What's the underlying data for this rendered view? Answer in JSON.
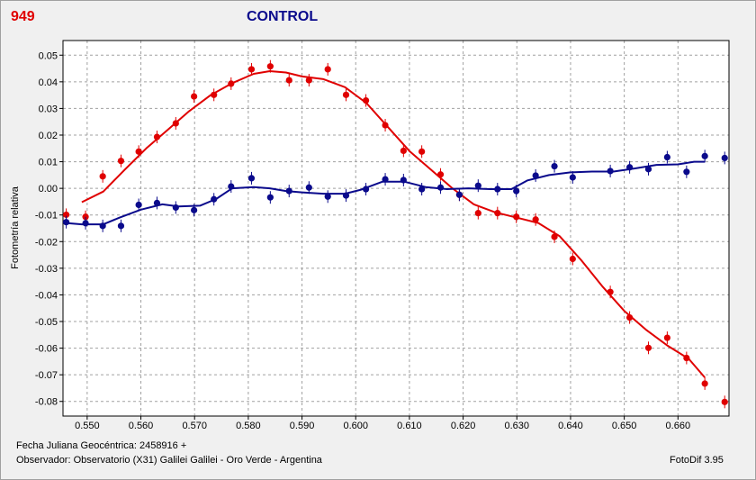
{
  "header": {
    "id": "949",
    "title": "CONTROL"
  },
  "footer": {
    "date_line": "Fecha Juliana Geocéntrica: 2458916 +",
    "observer_line": "Observador: Observatorio (X31) Galilei Galilei - Oro Verde - Argentina",
    "software": "FotoDif 3.95"
  },
  "colors": {
    "id": "#e00000",
    "title": "#0a0a8c",
    "red_series": "#e00000",
    "blue_series": "#0a0a8c",
    "grid": "#a0a0a0"
  },
  "chart_data": {
    "type": "scatter",
    "title": "CONTROL",
    "xlabel": "",
    "ylabel": "Fotometría relativa",
    "xlim": [
      0.5455,
      0.6695
    ],
    "ylim": [
      0.0555,
      -0.0855
    ],
    "y_inverted": true,
    "grid": true,
    "x_ticks": [
      0.55,
      0.56,
      0.57,
      0.58,
      0.59,
      0.6,
      0.61,
      0.62,
      0.63,
      0.64,
      0.65,
      0.66
    ],
    "x_tick_labels": [
      "0.550",
      "0.560",
      "0.570",
      "0.580",
      "0.590",
      "0.600",
      "0.610",
      "0.620",
      "0.630",
      "0.640",
      "0.650",
      "0.660"
    ],
    "y_ticks": [
      0.05,
      0.04,
      0.03,
      0.02,
      0.01,
      0.0,
      -0.01,
      -0.02,
      -0.03,
      -0.04,
      -0.05,
      -0.06,
      -0.07,
      -0.08
    ],
    "y_tick_labels": [
      "0.05",
      "0.04",
      "0.03",
      "0.02",
      "0.01",
      "0.00",
      "-0.01",
      "-0.02",
      "-0.03",
      "-0.04",
      "-0.05",
      "-0.06",
      "-0.07",
      "-0.08"
    ],
    "series": [
      {
        "color": "#e00000",
        "points": [
          [
            0.5461,
            -0.0099
          ],
          [
            0.5497,
            -0.0107
          ],
          [
            0.5529,
            0.0045
          ],
          [
            0.5563,
            0.0103
          ],
          [
            0.5596,
            0.0138
          ],
          [
            0.563,
            0.0193
          ],
          [
            0.5665,
            0.0244
          ],
          [
            0.5699,
            0.0345
          ],
          [
            0.5736,
            0.0351
          ],
          [
            0.5768,
            0.0393
          ],
          [
            0.5806,
            0.0447
          ],
          [
            0.5841,
            0.0458
          ],
          [
            0.5876,
            0.0406
          ],
          [
            0.5913,
            0.0406
          ],
          [
            0.5948,
            0.0447
          ],
          [
            0.5982,
            0.0351
          ],
          [
            0.6019,
            0.033
          ],
          [
            0.6055,
            0.0237
          ],
          [
            0.6089,
            0.0141
          ],
          [
            0.6123,
            0.0138
          ],
          [
            0.6158,
            0.0052
          ],
          [
            0.6193,
            -0.0024
          ],
          [
            0.6228,
            -0.0093
          ],
          [
            0.6264,
            -0.0093
          ],
          [
            0.6299,
            -0.0107
          ],
          [
            0.6335,
            -0.0117
          ],
          [
            0.637,
            -0.0182
          ],
          [
            0.6404,
            -0.0265
          ],
          [
            0.6474,
            -0.0389
          ],
          [
            0.651,
            -0.0485
          ],
          [
            0.6545,
            -0.0599
          ],
          [
            0.658,
            -0.0561
          ],
          [
            0.6616,
            -0.0637
          ],
          [
            0.665,
            -0.0733
          ],
          [
            0.6687,
            -0.0802
          ]
        ],
        "curve": [
          [
            0.549,
            -0.0052
          ],
          [
            0.553,
            -0.0012
          ],
          [
            0.557,
            0.007
          ],
          [
            0.561,
            0.015
          ],
          [
            0.565,
            0.022
          ],
          [
            0.569,
            0.029
          ],
          [
            0.573,
            0.035
          ],
          [
            0.577,
            0.0395
          ],
          [
            0.581,
            0.043
          ],
          [
            0.584,
            0.044
          ],
          [
            0.587,
            0.0435
          ],
          [
            0.59,
            0.042
          ],
          [
            0.594,
            0.041
          ],
          [
            0.598,
            0.038
          ],
          [
            0.602,
            0.032
          ],
          [
            0.606,
            0.023
          ],
          [
            0.61,
            0.014
          ],
          [
            0.614,
            0.007
          ],
          [
            0.618,
            0.0
          ],
          [
            0.622,
            -0.006
          ],
          [
            0.626,
            -0.009
          ],
          [
            0.63,
            -0.011
          ],
          [
            0.634,
            -0.013
          ],
          [
            0.638,
            -0.018
          ],
          [
            0.642,
            -0.027
          ],
          [
            0.646,
            -0.037
          ],
          [
            0.65,
            -0.046
          ],
          [
            0.654,
            -0.053
          ],
          [
            0.658,
            -0.059
          ],
          [
            0.662,
            -0.064
          ],
          [
            0.665,
            -0.071
          ]
        ]
      },
      {
        "color": "#0a0a8c",
        "points": [
          [
            0.5461,
            -0.0127
          ],
          [
            0.5497,
            -0.0131
          ],
          [
            0.5529,
            -0.0141
          ],
          [
            0.5563,
            -0.0141
          ],
          [
            0.5596,
            -0.0062
          ],
          [
            0.563,
            -0.0055
          ],
          [
            0.5665,
            -0.0072
          ],
          [
            0.5699,
            -0.0082
          ],
          [
            0.5736,
            -0.0041
          ],
          [
            0.5768,
            0.0007
          ],
          [
            0.5806,
            0.0038
          ],
          [
            0.5841,
            -0.0034
          ],
          [
            0.5876,
            -0.001
          ],
          [
            0.5913,
            0.0003
          ],
          [
            0.5948,
            -0.0031
          ],
          [
            0.5982,
            -0.0027
          ],
          [
            0.6019,
            -0.0003
          ],
          [
            0.6055,
            0.0034
          ],
          [
            0.6089,
            0.0031
          ],
          [
            0.6123,
            -0.0003
          ],
          [
            0.6158,
            0.0003
          ],
          [
            0.6193,
            -0.0024
          ],
          [
            0.6228,
            0.001
          ],
          [
            0.6264,
            -0.0003
          ],
          [
            0.6299,
            -0.001
          ],
          [
            0.6335,
            0.0048
          ],
          [
            0.637,
            0.0083
          ],
          [
            0.6404,
            0.0041
          ],
          [
            0.6474,
            0.0065
          ],
          [
            0.651,
            0.0079
          ],
          [
            0.6545,
            0.0072
          ],
          [
            0.658,
            0.0117
          ],
          [
            0.6616,
            0.0062
          ],
          [
            0.665,
            0.0121
          ],
          [
            0.6687,
            0.0114
          ]
        ],
        "curve": [
          [
            0.546,
            -0.013
          ],
          [
            0.549,
            -0.0135
          ],
          [
            0.553,
            -0.0135
          ],
          [
            0.556,
            -0.011
          ],
          [
            0.56,
            -0.008
          ],
          [
            0.564,
            -0.006
          ],
          [
            0.567,
            -0.0068
          ],
          [
            0.571,
            -0.0065
          ],
          [
            0.574,
            -0.004
          ],
          [
            0.577,
            0.0
          ],
          [
            0.581,
            0.0005
          ],
          [
            0.584,
            0.0
          ],
          [
            0.587,
            -0.001
          ],
          [
            0.59,
            -0.0015
          ],
          [
            0.594,
            -0.002
          ],
          [
            0.598,
            -0.002
          ],
          [
            0.601,
            -0.0005
          ],
          [
            0.605,
            0.0025
          ],
          [
            0.609,
            0.0025
          ],
          [
            0.613,
            0.0005
          ],
          [
            0.617,
            -0.0003
          ],
          [
            0.621,
            0.0
          ],
          [
            0.625,
            -0.0003
          ],
          [
            0.629,
            -0.0003
          ],
          [
            0.632,
            0.003
          ],
          [
            0.636,
            0.005
          ],
          [
            0.64,
            0.006
          ],
          [
            0.644,
            0.0063
          ],
          [
            0.648,
            0.0063
          ],
          [
            0.652,
            0.0075
          ],
          [
            0.656,
            0.0088
          ],
          [
            0.66,
            0.009
          ],
          [
            0.663,
            0.01
          ],
          [
            0.665,
            0.01
          ]
        ]
      }
    ]
  }
}
